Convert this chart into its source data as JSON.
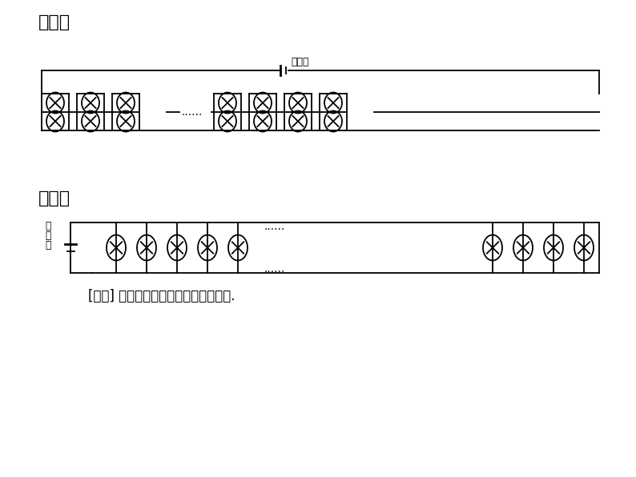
{
  "title1": "方案一",
  "title2": "方案二",
  "label_high": "高电压",
  "label_low1": "低",
  "label_low2": "电",
  "label_low3": "压",
  "footnote": "[缺点] 干路电流过大，灯两端电压过大.",
  "bg_color": "#ffffff",
  "line_color": "#000000",
  "title_fontsize": 16,
  "label_fontsize": 9,
  "footnote_fontsize": 12,
  "dots_fontsize": 10
}
